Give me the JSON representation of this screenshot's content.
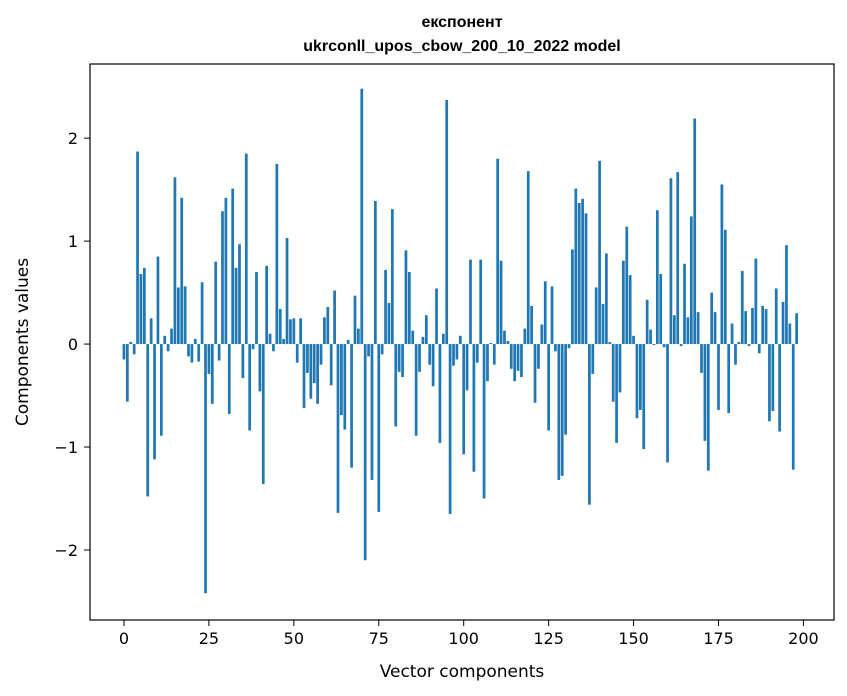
{
  "chart_data": {
    "type": "bar",
    "title_line1": "експонент",
    "title_line2": "ukrconll_upos_cbow_200_10_2022 model",
    "xlabel": "Vector components",
    "ylabel": "Components values",
    "xlim": [
      -10,
      209
    ],
    "ylim": [
      -2.68,
      2.72
    ],
    "xticks": [
      0,
      25,
      50,
      75,
      100,
      125,
      150,
      175,
      200
    ],
    "xtick_labels": [
      "0",
      "25",
      "50",
      "75",
      "100",
      "125",
      "150",
      "175",
      "200"
    ],
    "yticks": [
      -2,
      -1,
      0,
      1,
      2
    ],
    "ytick_labels": [
      "−2",
      "−1",
      "0",
      "1",
      "2"
    ],
    "bar_color": "#1f77b4",
    "grid": false,
    "values": [
      -0.15,
      -0.56,
      0.02,
      -0.1,
      1.87,
      0.68,
      0.74,
      -1.48,
      0.25,
      -1.12,
      0.85,
      -0.89,
      0.08,
      -0.07,
      0.15,
      1.62,
      0.55,
      1.42,
      0.56,
      -0.12,
      -0.18,
      0.05,
      -0.17,
      0.6,
      -2.42,
      -0.29,
      -0.58,
      0.8,
      -0.16,
      1.29,
      1.42,
      -0.68,
      1.51,
      0.74,
      0.97,
      -0.33,
      1.85,
      -0.84,
      -0.05,
      0.7,
      -0.46,
      -1.36,
      0.76,
      0.1,
      -0.07,
      1.75,
      0.34,
      0.05,
      1.03,
      0.24,
      0.25,
      -0.18,
      0.25,
      -0.62,
      -0.28,
      -0.53,
      -0.38,
      -0.58,
      -0.2,
      0.26,
      0.36,
      -0.4,
      0.52,
      -1.64,
      -0.69,
      -0.83,
      0.04,
      -1.2,
      0.47,
      0.15,
      2.48,
      -2.1,
      -0.12,
      -1.32,
      1.39,
      -1.63,
      -0.1,
      0.72,
      0.4,
      1.31,
      -0.8,
      -0.27,
      -0.32,
      0.91,
      0.7,
      0.13,
      -0.89,
      -0.27,
      0.07,
      0.28,
      -0.2,
      -0.41,
      0.54,
      -0.96,
      0.1,
      2.37,
      -1.65,
      -0.21,
      -0.15,
      0.08,
      -1.07,
      -0.45,
      0.82,
      -1.24,
      -0.18,
      0.82,
      -1.5,
      -0.36,
      0.01,
      -0.2,
      1.8,
      0.81,
      0.13,
      0.03,
      -0.24,
      -0.36,
      -0.26,
      -0.32,
      0.15,
      1.68,
      0.37,
      -0.57,
      -0.24,
      0.19,
      0.61,
      -0.84,
      0.56,
      -0.07,
      -1.32,
      -1.28,
      -0.88,
      -0.04,
      0.92,
      1.51,
      1.37,
      1.41,
      1.27,
      -1.56,
      -0.29,
      0.55,
      1.78,
      0.39,
      0.88,
      0.02,
      -0.56,
      -0.96,
      -0.47,
      0.81,
      1.14,
      0.67,
      0.08,
      -0.72,
      -0.64,
      -1.02,
      0.43,
      0.14,
      -0.01,
      1.3,
      0.68,
      -0.03,
      -1.15,
      1.61,
      0.28,
      1.67,
      -0.02,
      0.78,
      0.26,
      1.24,
      2.19,
      0.31,
      -0.28,
      -0.94,
      -1.23,
      0.5,
      0.31,
      -0.64,
      1.55,
      1.11,
      -0.67,
      0.2,
      -0.2,
      0.02,
      0.71,
      0.32,
      -0.02,
      0.35,
      0.83,
      -0.09,
      0.37,
      0.34,
      -0.75,
      -0.65,
      0.54,
      -0.85,
      0.41,
      0.96,
      0.2,
      -1.22,
      0.3,
      0.0
    ]
  }
}
